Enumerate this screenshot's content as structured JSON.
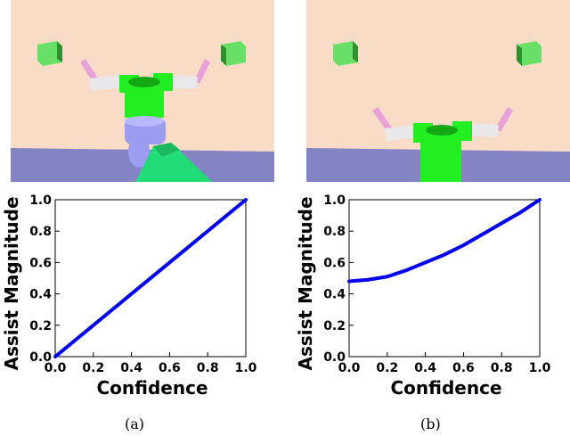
{
  "captions": {
    "a": "(a)",
    "b": "(b)"
  },
  "colors": {
    "wall": "#f8dcc8",
    "floor": "#8484c4",
    "cube": "#68e068",
    "robot_body": "#22ee22",
    "gripper": "#e8a0d8",
    "arm": "#e8e8ea",
    "robot_lower": "#9c9cf0",
    "human_arm": "#22dd77",
    "curve": "#0000ee"
  },
  "icons": {
    "scene_a": "robot-arm-scene-icon",
    "scene_b": "robot-arm-scene-icon"
  },
  "chart_data": [
    {
      "type": "line",
      "xlabel": "Confidence",
      "ylabel": "Assist Magnitude",
      "xlim": [
        0.0,
        1.0
      ],
      "ylim": [
        0.0,
        1.0
      ],
      "xticks": [
        "0.0",
        "0.2",
        "0.4",
        "0.6",
        "0.8",
        "1.0"
      ],
      "yticks": [
        "0.0",
        "0.2",
        "0.4",
        "0.6",
        "0.8",
        "1.0"
      ],
      "grid": false,
      "series": [
        {
          "x": [
            0.0,
            0.2,
            0.4,
            0.6,
            0.8,
            1.0
          ],
          "y": [
            0.0,
            0.2,
            0.4,
            0.6,
            0.8,
            1.0
          ]
        }
      ]
    },
    {
      "type": "line",
      "xlabel": "Confidence",
      "ylabel": "Assist Magnitude",
      "xlim": [
        0.0,
        1.0
      ],
      "ylim": [
        0.0,
        1.0
      ],
      "xticks": [
        "0.0",
        "0.2",
        "0.4",
        "0.6",
        "0.8",
        "1.0"
      ],
      "yticks": [
        "0.0",
        "0.2",
        "0.4",
        "0.6",
        "0.8",
        "1.0"
      ],
      "grid": false,
      "series": [
        {
          "x": [
            0.0,
            0.1,
            0.2,
            0.3,
            0.4,
            0.5,
            0.6,
            0.7,
            0.8,
            0.9,
            1.0
          ],
          "y": [
            0.48,
            0.49,
            0.51,
            0.55,
            0.6,
            0.65,
            0.71,
            0.78,
            0.85,
            0.92,
            1.0
          ]
        }
      ]
    }
  ]
}
